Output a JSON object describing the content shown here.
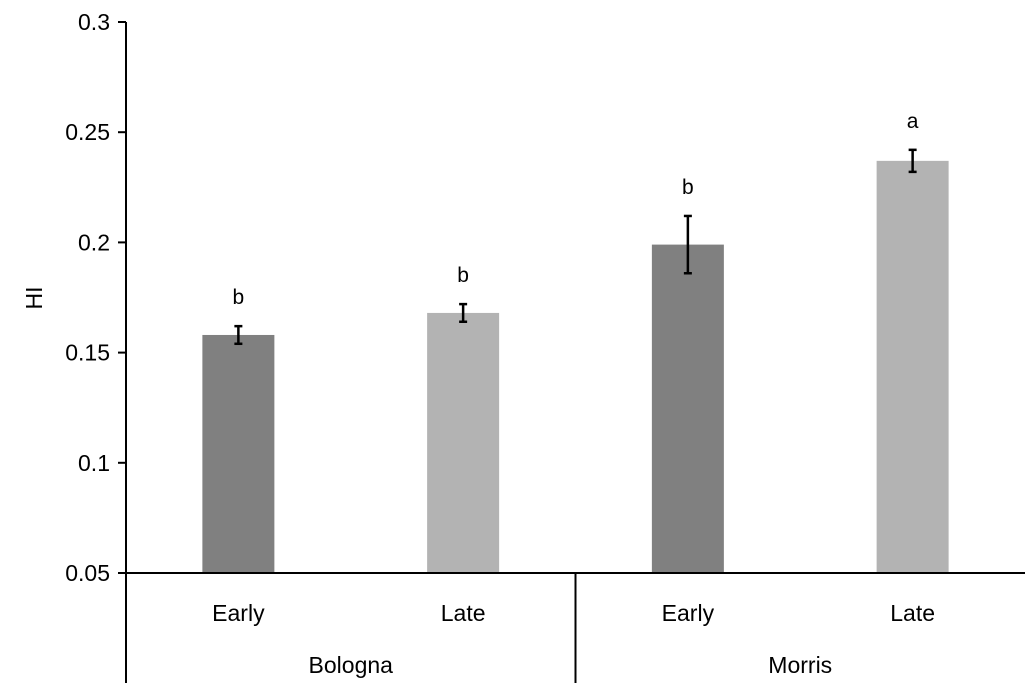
{
  "chart_data": {
    "type": "bar",
    "ylabel": "HI",
    "ylim": [
      0.05,
      0.3
    ],
    "yticks": [
      {
        "value": 0.05,
        "label": "0.05"
      },
      {
        "value": 0.1,
        "label": "0.1"
      },
      {
        "value": 0.15,
        "label": "0.15"
      },
      {
        "value": 0.2,
        "label": "0.2"
      },
      {
        "value": 0.25,
        "label": "0.25"
      },
      {
        "value": 0.3,
        "label": "0.3"
      }
    ],
    "grid": false,
    "legend": "none",
    "groups": [
      "Bologna",
      "Morris"
    ],
    "categories": [
      "Early",
      "Late",
      "Early",
      "Late"
    ],
    "values": [
      0.158,
      0.168,
      0.199,
      0.237
    ],
    "errors": [
      0.004,
      0.004,
      0.013,
      0.005
    ],
    "significance": [
      "b",
      "b",
      "b",
      "a"
    ],
    "colors": {
      "Early": "#808080",
      "Late": "#b3b3b3",
      "axis": "#000000"
    }
  }
}
